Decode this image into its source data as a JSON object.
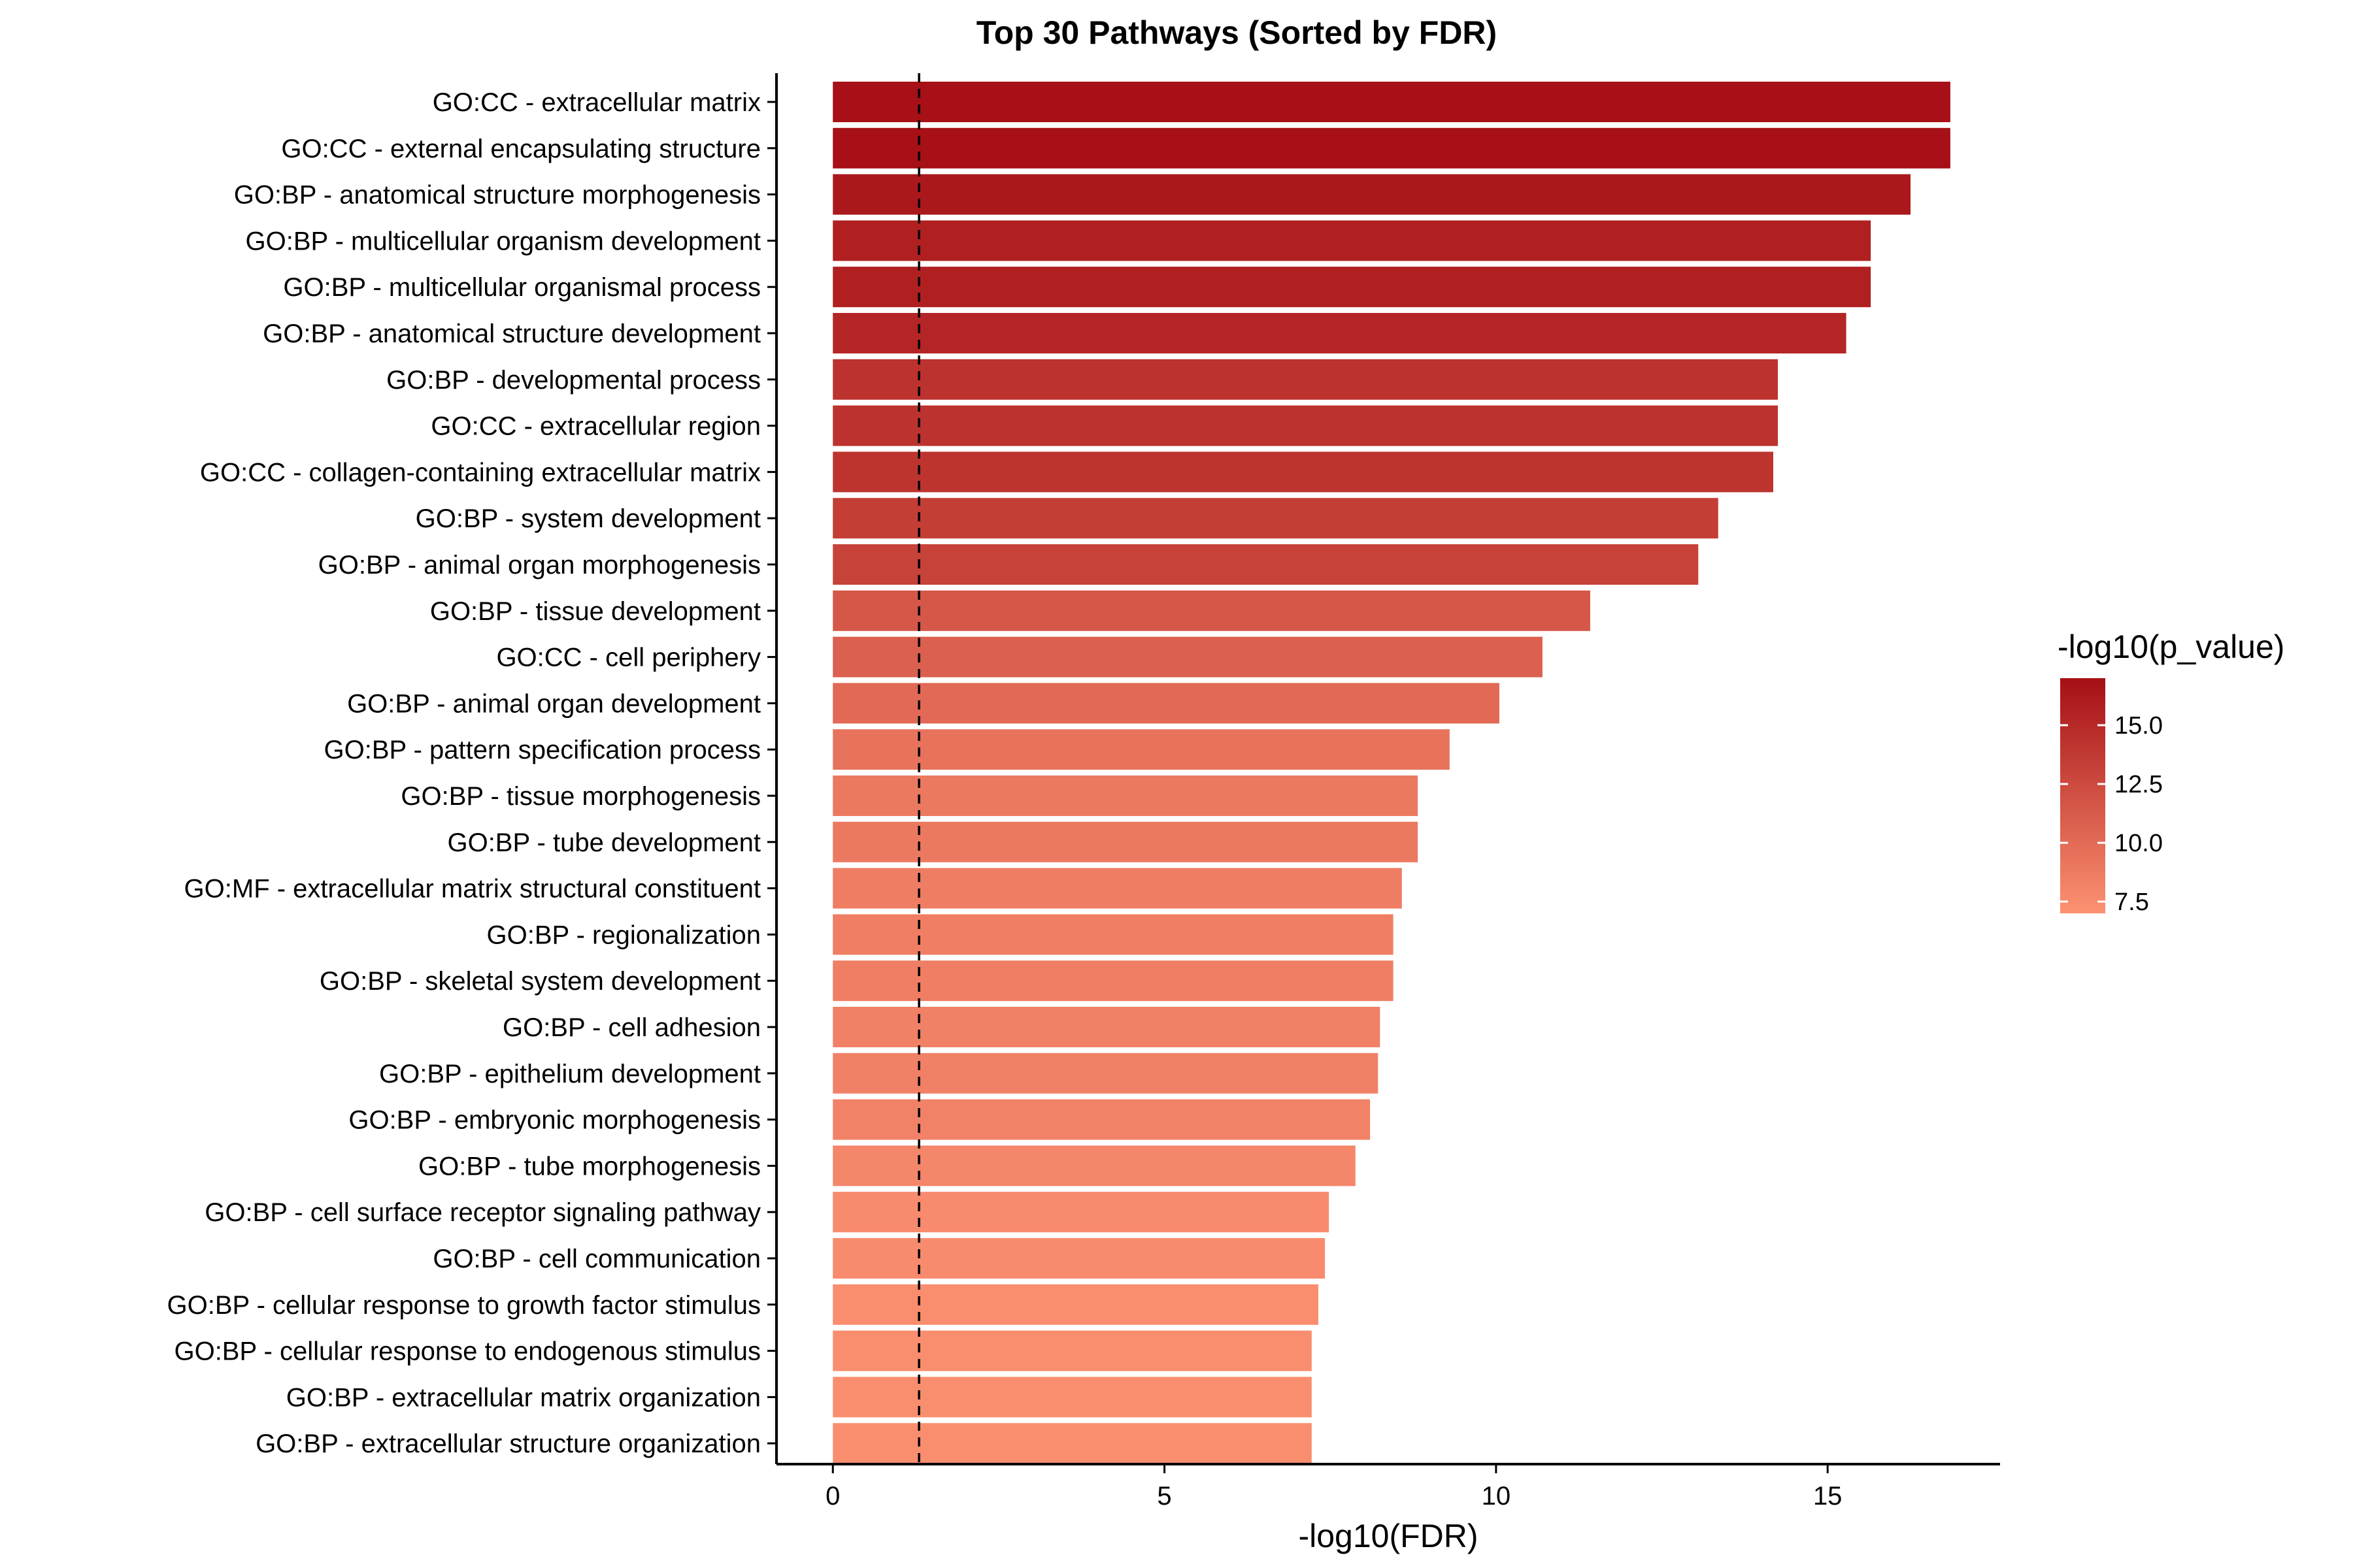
{
  "chart_data": {
    "type": "bar",
    "orientation": "horizontal",
    "title": "Top 30 Pathways (Sorted by FDR)",
    "xlabel": "-log10(FDR)",
    "ylabel": "",
    "xlim": [
      -0.85,
      17.6
    ],
    "x_ticks": [
      0,
      5,
      10,
      15
    ],
    "threshold_line": 1.3,
    "grid": false,
    "categories": [
      "GO:CC - extracellular matrix",
      "GO:CC - external encapsulating structure",
      "GO:BP - anatomical structure morphogenesis",
      "GO:BP - multicellular organism development",
      "GO:BP - multicellular organismal process",
      "GO:BP - anatomical structure development",
      "GO:BP - developmental process",
      "GO:CC - extracellular region",
      "GO:CC - collagen-containing extracellular matrix",
      "GO:BP - system development",
      "GO:BP - animal organ morphogenesis",
      "GO:BP - tissue development",
      "GO:CC - cell periphery",
      "GO:BP - animal organ development",
      "GO:BP - pattern specification process",
      "GO:BP - tissue morphogenesis",
      "GO:BP - tube development",
      "GO:MF - extracellular matrix structural constituent",
      "GO:BP - regionalization",
      "GO:BP - skeletal system development",
      "GO:BP - cell adhesion",
      "GO:BP - epithelium development",
      "GO:BP - embryonic morphogenesis",
      "GO:BP - tube morphogenesis",
      "GO:BP - cell surface receptor signaling pathway",
      "GO:BP - cell communication",
      "GO:BP - cellular response to growth factor stimulus",
      "GO:BP - cellular response to endogenous stimulus",
      "GO:BP - extracellular matrix organization",
      "GO:BP - extracellular structure organization"
    ],
    "values": [
      16.85,
      16.85,
      16.25,
      15.65,
      15.65,
      15.28,
      14.25,
      14.25,
      14.18,
      13.35,
      13.05,
      11.42,
      10.7,
      10.05,
      9.3,
      8.82,
      8.82,
      8.58,
      8.45,
      8.45,
      8.25,
      8.22,
      8.1,
      7.88,
      7.48,
      7.42,
      7.32,
      7.22,
      7.22,
      7.22
    ],
    "color_values": [
      16.9,
      16.9,
      16.3,
      15.7,
      15.7,
      15.3,
      14.3,
      14.3,
      14.2,
      13.4,
      13.1,
      11.5,
      10.8,
      10.1,
      9.4,
      8.9,
      8.9,
      8.6,
      8.5,
      8.5,
      8.3,
      8.3,
      8.2,
      7.9,
      7.5,
      7.5,
      7.4,
      7.3,
      7.3,
      7.3
    ],
    "legend": {
      "title": "-log10(p_value)",
      "placement": "right",
      "ticks": [
        7.5,
        10.0,
        12.5,
        15.0
      ],
      "tick_labels": [
        "7.5",
        "10.0",
        "12.5",
        "15.0"
      ],
      "range": [
        7.0,
        17.0
      ],
      "color_low": "#fc9272",
      "color_high": "#a50f15"
    }
  }
}
